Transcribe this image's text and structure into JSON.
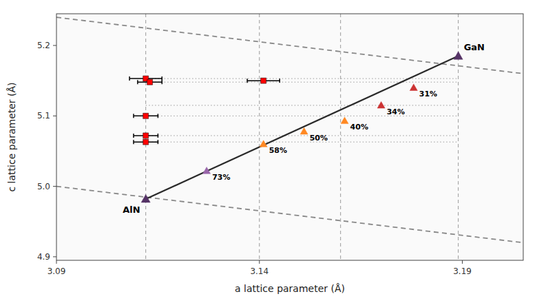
{
  "chart_data": {
    "type": "scatter",
    "xlabel": "a lattice parameter (Å)",
    "ylabel": "c lattice parameter (Å)",
    "xlim": [
      3.09,
      3.205
    ],
    "ylim": [
      4.895,
      5.245
    ],
    "xticks": [
      3.09,
      3.14,
      3.19
    ],
    "yticks": [
      4.9,
      {
        "value": 5.0,
        "label": "5.0"
      },
      5.1,
      5.2
    ],
    "vlines": [
      3.112,
      3.14,
      3.16,
      3.189
    ],
    "dotted_lines": {
      "x": [
        3.112,
        3.189
      ],
      "y": [
        5.063,
        5.072,
        5.1,
        5.115,
        5.148,
        5.153
      ]
    },
    "dashed_lines": [
      {
        "x": [
          3.09,
          3.205
        ],
        "y": [
          5.24,
          5.16
        ],
        "color": "#888888"
      },
      {
        "x": [
          3.09,
          3.205
        ],
        "y": [
          5.0,
          4.92
        ],
        "color": "#888888"
      }
    ],
    "relaxation_line": {
      "x": [
        3.112,
        3.189
      ],
      "y": [
        4.982,
        5.185
      ],
      "color": "#2a2a2a"
    },
    "points": {
      "x": [
        3.127,
        3.141,
        3.151,
        3.161,
        3.17,
        3.178
      ],
      "y": [
        5.022,
        5.06,
        5.078,
        5.093,
        5.115,
        5.14
      ],
      "labels": [
        "73%",
        "58%",
        "50%",
        "40%",
        "34%",
        "31%"
      ],
      "colors": [
        "#9966aa",
        "#ff8822",
        "#ff8822",
        "#ff8822",
        "#cc3333",
        "#cc3333"
      ],
      "marker": "triangle"
    },
    "endpoints": {
      "x": [
        3.112,
        3.189
      ],
      "y": [
        4.982,
        5.185
      ],
      "labels": [
        "AlN",
        "GaN"
      ],
      "color": "#553366",
      "marker": "triangle"
    },
    "error_points": {
      "x": [
        3.112,
        3.113,
        3.141,
        3.112,
        3.112,
        3.112
      ],
      "y": [
        5.153,
        5.148,
        5.15,
        5.1,
        5.072,
        5.063
      ],
      "xerr": [
        0.004,
        0.003,
        0.004,
        0.003,
        0.003,
        0.003
      ],
      "color": "red",
      "marker": "square"
    }
  }
}
